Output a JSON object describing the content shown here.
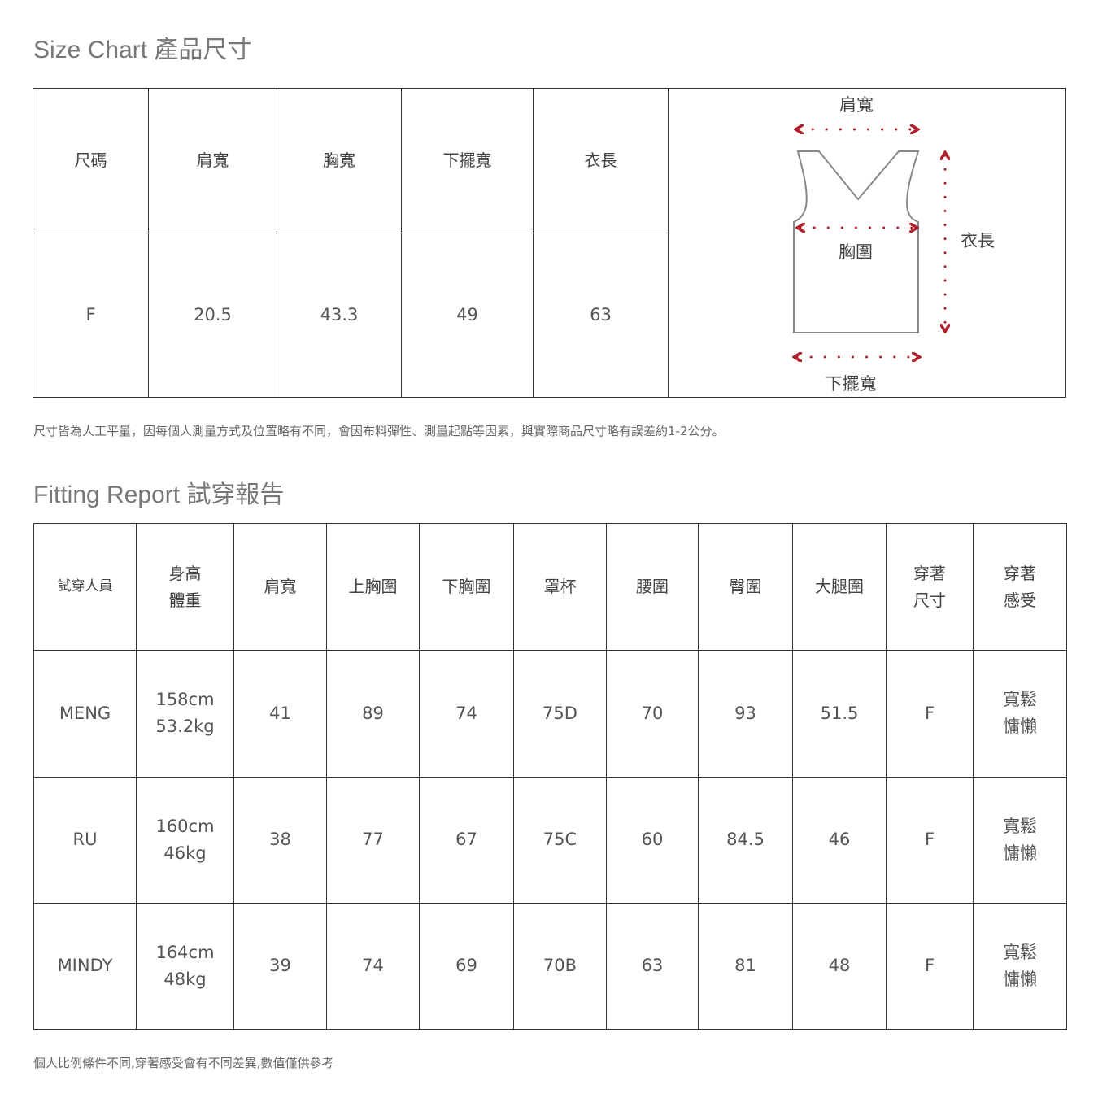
{
  "size_chart": {
    "title": "Size Chart 產品尺寸",
    "headers": [
      "尺碼",
      "肩寬",
      "胸寬",
      "下擺寬",
      "衣長"
    ],
    "rows": [
      [
        "F",
        "20.5",
        "43.3",
        "49",
        "63"
      ]
    ],
    "diagram": {
      "shoulder": "肩寬",
      "chest": "胸圍",
      "length": "衣長",
      "hem": "下擺寬",
      "arrow_color": "#b0202c"
    },
    "note": "尺寸皆為人工平量，因每個人測量方式及位置略有不同，會因布料彈性、測量起點等因素，與實際商品尺寸略有誤差約1-2公分。"
  },
  "fitting": {
    "title": "Fitting Report 試穿報告",
    "headers": [
      [
        "試穿人員"
      ],
      [
        "身高",
        "體重"
      ],
      [
        "肩寬"
      ],
      [
        "上胸圍"
      ],
      [
        "下胸圍"
      ],
      [
        "罩杯"
      ],
      [
        "腰圍"
      ],
      [
        "臀圍"
      ],
      [
        "大腿圍"
      ],
      [
        "穿著",
        "尺寸"
      ],
      [
        "穿著",
        "感受"
      ]
    ],
    "rows": [
      {
        "name": "MENG",
        "height": "158cm",
        "weight": "53.2kg",
        "cells": [
          "41",
          "89",
          "74",
          "75D",
          "70",
          "93",
          "51.5",
          "F"
        ],
        "feel": [
          "寬鬆",
          "慵懶"
        ]
      },
      {
        "name": "RU",
        "height": "160cm",
        "weight": "46kg",
        "cells": [
          "38",
          "77",
          "67",
          "75C",
          "60",
          "84.5",
          "46",
          "F"
        ],
        "feel": [
          "寬鬆",
          "慵懶"
        ]
      },
      {
        "name": "MINDY",
        "height": "164cm",
        "weight": "48kg",
        "cells": [
          "39",
          "74",
          "69",
          "70B",
          "63",
          "81",
          "48",
          "F"
        ],
        "feel": [
          "寬鬆",
          "慵懶"
        ]
      }
    ],
    "note": "個人比例條件不同,穿著感受會有不同差異,數值僅供參考"
  }
}
